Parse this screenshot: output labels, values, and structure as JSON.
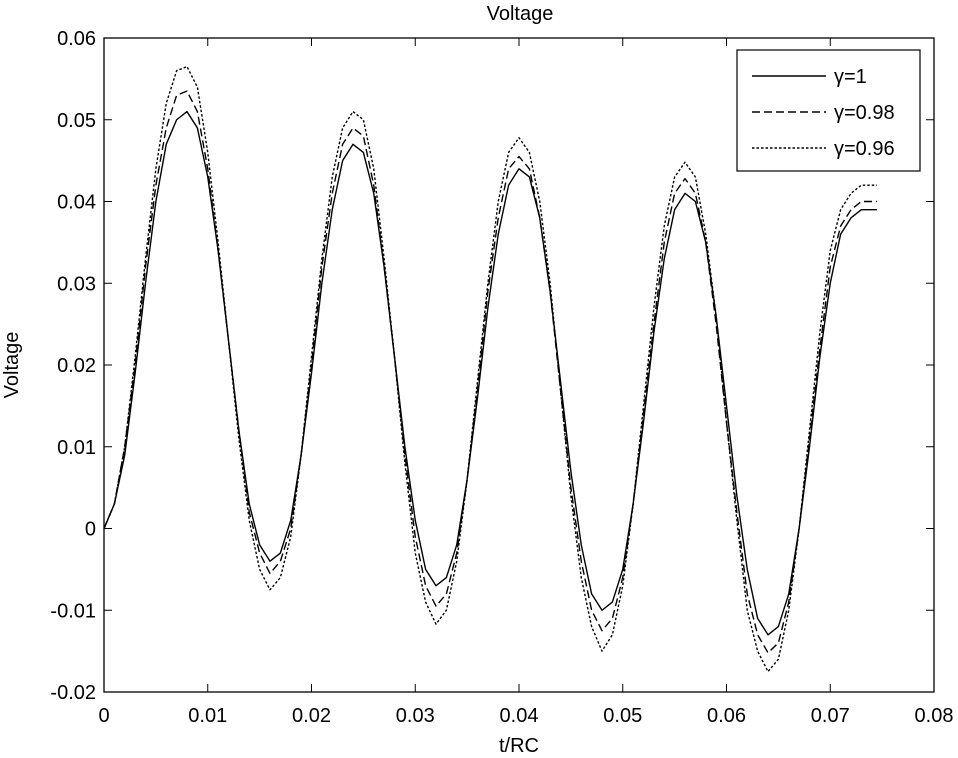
{
  "chart_data": {
    "type": "line",
    "title": "Voltage",
    "xlabel": "t/RC",
    "ylabel": "Voltage",
    "xlim": [
      0,
      0.08
    ],
    "ylim": [
      -0.02,
      0.06
    ],
    "x_ticks": [
      0,
      0.01,
      0.02,
      0.03,
      0.04,
      0.05,
      0.06,
      0.07,
      0.08
    ],
    "x_tick_labels": [
      "0",
      "0.01",
      "0.02",
      "0.03",
      "0.04",
      "0.05",
      "0.06",
      "0.07",
      "0.08"
    ],
    "y_ticks": [
      -0.02,
      -0.01,
      0,
      0.01,
      0.02,
      0.03,
      0.04,
      0.05,
      0.06
    ],
    "y_tick_labels": [
      "-0.02",
      "-0.01",
      "0",
      "0.01",
      "0.02",
      "0.03",
      "0.04",
      "0.05",
      "0.06"
    ],
    "grid": false,
    "legend_position": "top-right",
    "series": [
      {
        "name": "γ=1",
        "style": "solid",
        "x": [
          0,
          0.001,
          0.002,
          0.003,
          0.004,
          0.005,
          0.006,
          0.007,
          0.008,
          0.009,
          0.01,
          0.011,
          0.012,
          0.013,
          0.014,
          0.015,
          0.016,
          0.017,
          0.018,
          0.019,
          0.02,
          0.021,
          0.022,
          0.023,
          0.024,
          0.025,
          0.026,
          0.027,
          0.028,
          0.029,
          0.03,
          0.031,
          0.032,
          0.033,
          0.034,
          0.035,
          0.036,
          0.037,
          0.038,
          0.039,
          0.04,
          0.041,
          0.042,
          0.043,
          0.044,
          0.045,
          0.046,
          0.047,
          0.048,
          0.049,
          0.05,
          0.051,
          0.052,
          0.053,
          0.054,
          0.055,
          0.056,
          0.057,
          0.058,
          0.059,
          0.06,
          0.061,
          0.062,
          0.063,
          0.064,
          0.065,
          0.066,
          0.067,
          0.068,
          0.069,
          0.07,
          0.071,
          0.072,
          0.073,
          0.074,
          0.0745
        ],
        "y": [
          0,
          0.003,
          0.009,
          0.019,
          0.03,
          0.04,
          0.047,
          0.05,
          0.051,
          0.049,
          0.043,
          0.034,
          0.023,
          0.012,
          0.003,
          -0.002,
          -0.004,
          -0.003,
          0.001,
          0.009,
          0.019,
          0.03,
          0.039,
          0.045,
          0.047,
          0.046,
          0.041,
          0.032,
          0.021,
          0.01,
          0.001,
          -0.005,
          -0.007,
          -0.006,
          -0.002,
          0.006,
          0.016,
          0.027,
          0.036,
          0.042,
          0.044,
          0.043,
          0.038,
          0.029,
          0.018,
          0.007,
          -0.002,
          -0.008,
          -0.01,
          -0.009,
          -0.005,
          0.003,
          0.013,
          0.024,
          0.033,
          0.039,
          0.041,
          0.04,
          0.035,
          0.026,
          0.015,
          0.004,
          -0.005,
          -0.011,
          -0.013,
          -0.012,
          -0.008,
          0.0,
          0.01,
          0.021,
          0.03,
          0.036,
          0.038,
          0.039,
          0.039,
          0.039
        ]
      },
      {
        "name": "γ=0.98",
        "style": "dashed",
        "x": [
          0,
          0.001,
          0.002,
          0.003,
          0.004,
          0.005,
          0.006,
          0.007,
          0.008,
          0.009,
          0.01,
          0.011,
          0.012,
          0.013,
          0.014,
          0.015,
          0.016,
          0.017,
          0.018,
          0.019,
          0.02,
          0.021,
          0.022,
          0.023,
          0.024,
          0.025,
          0.026,
          0.027,
          0.028,
          0.029,
          0.03,
          0.031,
          0.032,
          0.033,
          0.034,
          0.035,
          0.036,
          0.037,
          0.038,
          0.039,
          0.04,
          0.041,
          0.042,
          0.043,
          0.044,
          0.045,
          0.046,
          0.047,
          0.048,
          0.049,
          0.05,
          0.051,
          0.052,
          0.053,
          0.054,
          0.055,
          0.056,
          0.057,
          0.058,
          0.059,
          0.06,
          0.061,
          0.062,
          0.063,
          0.064,
          0.065,
          0.066,
          0.067,
          0.068,
          0.069,
          0.07,
          0.071,
          0.072,
          0.073,
          0.074,
          0.0745
        ],
        "y": [
          0,
          0.003,
          0.01,
          0.02,
          0.032,
          0.042,
          0.049,
          0.053,
          0.0535,
          0.051,
          0.044,
          0.034,
          0.023,
          0.012,
          0.002,
          -0.003,
          -0.0055,
          -0.004,
          0.0,
          0.009,
          0.02,
          0.032,
          0.041,
          0.047,
          0.049,
          0.048,
          0.042,
          0.032,
          0.021,
          0.009,
          -0.001,
          -0.007,
          -0.0095,
          -0.008,
          -0.003,
          0.006,
          0.017,
          0.029,
          0.038,
          0.044,
          0.0455,
          0.044,
          0.038,
          0.029,
          0.017,
          0.005,
          -0.004,
          -0.01,
          -0.0125,
          -0.011,
          -0.006,
          0.003,
          0.014,
          0.025,
          0.035,
          0.041,
          0.0428,
          0.041,
          0.035,
          0.025,
          0.013,
          0.002,
          -0.008,
          -0.013,
          -0.0152,
          -0.014,
          -0.009,
          0.0,
          0.011,
          0.022,
          0.032,
          0.037,
          0.039,
          0.04,
          0.04,
          0.04
        ]
      },
      {
        "name": "γ=0.96",
        "style": "dotted",
        "x": [
          0,
          0.001,
          0.002,
          0.003,
          0.004,
          0.005,
          0.006,
          0.007,
          0.008,
          0.009,
          0.01,
          0.011,
          0.012,
          0.013,
          0.014,
          0.015,
          0.016,
          0.017,
          0.018,
          0.019,
          0.02,
          0.021,
          0.022,
          0.023,
          0.024,
          0.025,
          0.026,
          0.027,
          0.028,
          0.029,
          0.03,
          0.031,
          0.032,
          0.033,
          0.034,
          0.035,
          0.036,
          0.037,
          0.038,
          0.039,
          0.04,
          0.041,
          0.042,
          0.043,
          0.044,
          0.045,
          0.046,
          0.047,
          0.048,
          0.049,
          0.05,
          0.051,
          0.052,
          0.053,
          0.054,
          0.055,
          0.056,
          0.057,
          0.058,
          0.059,
          0.06,
          0.061,
          0.062,
          0.063,
          0.064,
          0.065,
          0.066,
          0.067,
          0.068,
          0.069,
          0.07,
          0.071,
          0.072,
          0.073,
          0.074,
          0.0745
        ],
        "y": [
          0,
          0.003,
          0.01,
          0.021,
          0.033,
          0.044,
          0.052,
          0.056,
          0.0565,
          0.054,
          0.046,
          0.035,
          0.023,
          0.011,
          0.001,
          -0.005,
          -0.0075,
          -0.006,
          -0.001,
          0.009,
          0.021,
          0.033,
          0.043,
          0.049,
          0.051,
          0.05,
          0.044,
          0.033,
          0.021,
          0.008,
          -0.003,
          -0.009,
          -0.0117,
          -0.01,
          -0.004,
          0.006,
          0.018,
          0.03,
          0.04,
          0.046,
          0.0478,
          0.046,
          0.04,
          0.03,
          0.017,
          0.004,
          -0.006,
          -0.012,
          -0.015,
          -0.013,
          -0.007,
          0.003,
          0.015,
          0.027,
          0.037,
          0.043,
          0.0448,
          0.043,
          0.036,
          0.026,
          0.013,
          0.001,
          -0.01,
          -0.015,
          -0.0175,
          -0.016,
          -0.01,
          0.0,
          0.012,
          0.024,
          0.034,
          0.039,
          0.041,
          0.042,
          0.042,
          0.042
        ]
      }
    ]
  }
}
